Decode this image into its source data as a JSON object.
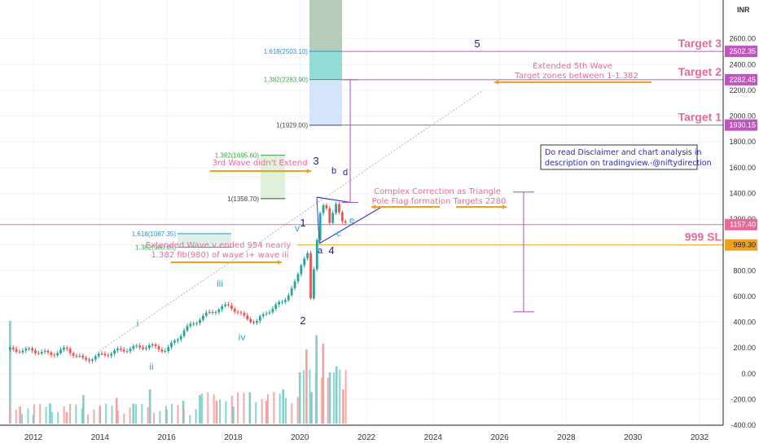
{
  "chart_data": {
    "type": "candlestick",
    "currency": "INR",
    "y_scale": "linear",
    "ylim": [
      -400,
      2800
    ],
    "xlim": [
      2011.2,
      2033.0
    ],
    "x_ticks": [
      "2012",
      "2014",
      "2016",
      "2018",
      "2020",
      "2022",
      "2024",
      "2026",
      "2028",
      "2030",
      "2032"
    ],
    "y_ticks": [
      "-400.00",
      "-200.00",
      "0.00",
      "200.00",
      "400.00",
      "600.00",
      "800.00",
      "1000.00",
      "1200.00",
      "1400.00",
      "1600.00",
      "1800.00",
      "2000.00",
      "2200.00",
      "2400.00",
      "2600.00"
    ],
    "price_series": [
      [
        2011.3,
        185
      ],
      [
        2012.0,
        180
      ],
      [
        2012.5,
        150
      ],
      [
        2013.0,
        190
      ],
      [
        2013.5,
        105
      ],
      [
        2014.0,
        140
      ],
      [
        2014.5,
        175
      ],
      [
        2015.0,
        200
      ],
      [
        2015.5,
        215
      ],
      [
        2016.0,
        180
      ],
      [
        2016.5,
        330
      ],
      [
        2017.0,
        430
      ],
      [
        2017.5,
        500
      ],
      [
        2017.9,
        530
      ],
      [
        2018.3,
        440
      ],
      [
        2018.7,
        400
      ],
      [
        2019.0,
        480
      ],
      [
        2019.5,
        560
      ],
      [
        2019.9,
        720
      ],
      [
        2020.1,
        900
      ],
      [
        2020.25,
        954
      ],
      [
        2020.3,
        520
      ],
      [
        2020.45,
        860
      ],
      [
        2020.6,
        1250
      ],
      [
        2020.75,
        1358
      ],
      [
        2020.9,
        1150
      ],
      [
        2021.1,
        1330
      ],
      [
        2021.3,
        1180
      ],
      [
        2021.5,
        1157
      ]
    ],
    "volume": [
      [
        2011.3,
        360
      ],
      [
        2011.6,
        60
      ],
      [
        2012.0,
        30
      ],
      [
        2012.5,
        70
      ],
      [
        2013.0,
        40
      ],
      [
        2013.5,
        100
      ],
      [
        2014.0,
        60
      ],
      [
        2014.5,
        90
      ],
      [
        2015.0,
        70
      ],
      [
        2015.5,
        120
      ],
      [
        2016.0,
        50
      ],
      [
        2016.5,
        80
      ],
      [
        2017.0,
        100
      ],
      [
        2017.5,
        80
      ],
      [
        2018.0,
        60
      ],
      [
        2018.5,
        110
      ],
      [
        2019.0,
        80
      ],
      [
        2019.5,
        120
      ],
      [
        2020.0,
        180
      ],
      [
        2020.2,
        260
      ],
      [
        2020.35,
        110
      ],
      [
        2020.5,
        310
      ],
      [
        2020.7,
        280
      ],
      [
        2020.9,
        180
      ],
      [
        2021.1,
        200
      ],
      [
        2021.3,
        120
      ]
    ],
    "fib_levels": [
      {
        "label": "1.618(2503.10)",
        "value": 2503.1,
        "color": "#2b8fd1"
      },
      {
        "label": "1.382(2283.90)",
        "value": 2283.9,
        "color": "#3aa34a"
      },
      {
        "label": "1(1929.00)",
        "value": 1929.0,
        "color": "#444444"
      },
      {
        "label": "1.382(1695.60)",
        "value": 1695.6,
        "color": "#3aa34a"
      },
      {
        "label": "1(1358.70)",
        "value": 1358.7,
        "color": "#444444"
      },
      {
        "label": "1.618(1087.35)",
        "value": 1087.35,
        "color": "#2b8fd1"
      },
      {
        "label": "1.382(980.65)",
        "value": 980.65,
        "color": "#3aa34a"
      }
    ],
    "horizontal_levels": [
      {
        "label": "Target 3",
        "price": "2502.35",
        "value": 2502.35,
        "color": "#c055c0"
      },
      {
        "label": "Target 2",
        "price": "2282.45",
        "value": 2282.45,
        "color": "#c055c0"
      },
      {
        "label": "Target 1",
        "price": "1930.15",
        "value": 1930.15,
        "color": "#c055c0"
      },
      {
        "label": "999 SL",
        "price": "999.30",
        "value": 999.3,
        "color": "#f0a020"
      },
      {
        "label": "",
        "price": "1157.40",
        "value": 1157.4,
        "color": "#e8699a"
      }
    ],
    "wave_labels": {
      "major": [
        "1",
        "2",
        "3",
        "4",
        "5"
      ],
      "minor": [
        "i",
        "ii",
        "iii",
        "iv",
        "v"
      ],
      "triangle": [
        "a",
        "b",
        "c",
        "d",
        "e"
      ]
    },
    "annotations": {
      "wave3": "3rd Wave didn't Extend",
      "extended_5th_line1": "Extended 5th Wave",
      "extended_5th_line2": "Target zones between 1-1.382",
      "correction_line1": "Complex Correction as Triangle",
      "correction_line2": "Pole Flag formation Targets 2280",
      "wave_v_line1": "Extended Wave v ended 954 nearly",
      "wave_v_line2": "1.382 fib(980) of wave i+ wave iii",
      "disclaimer_line1": "Do read Disclaimer and chart analysis in",
      "disclaimer_line2": "description on tradingview.-@niftydirection"
    },
    "colors": {
      "up": "#26a69a",
      "down": "#ef5350",
      "volume_up": "#7fcfc6",
      "volume_down": "#f4a0a0",
      "target_text": "#e8699a",
      "wave_major": "#1a1aa6",
      "wave_minor": "#2aa6c9",
      "arrow": "#f0a020",
      "measure": "#b04ad0"
    }
  }
}
